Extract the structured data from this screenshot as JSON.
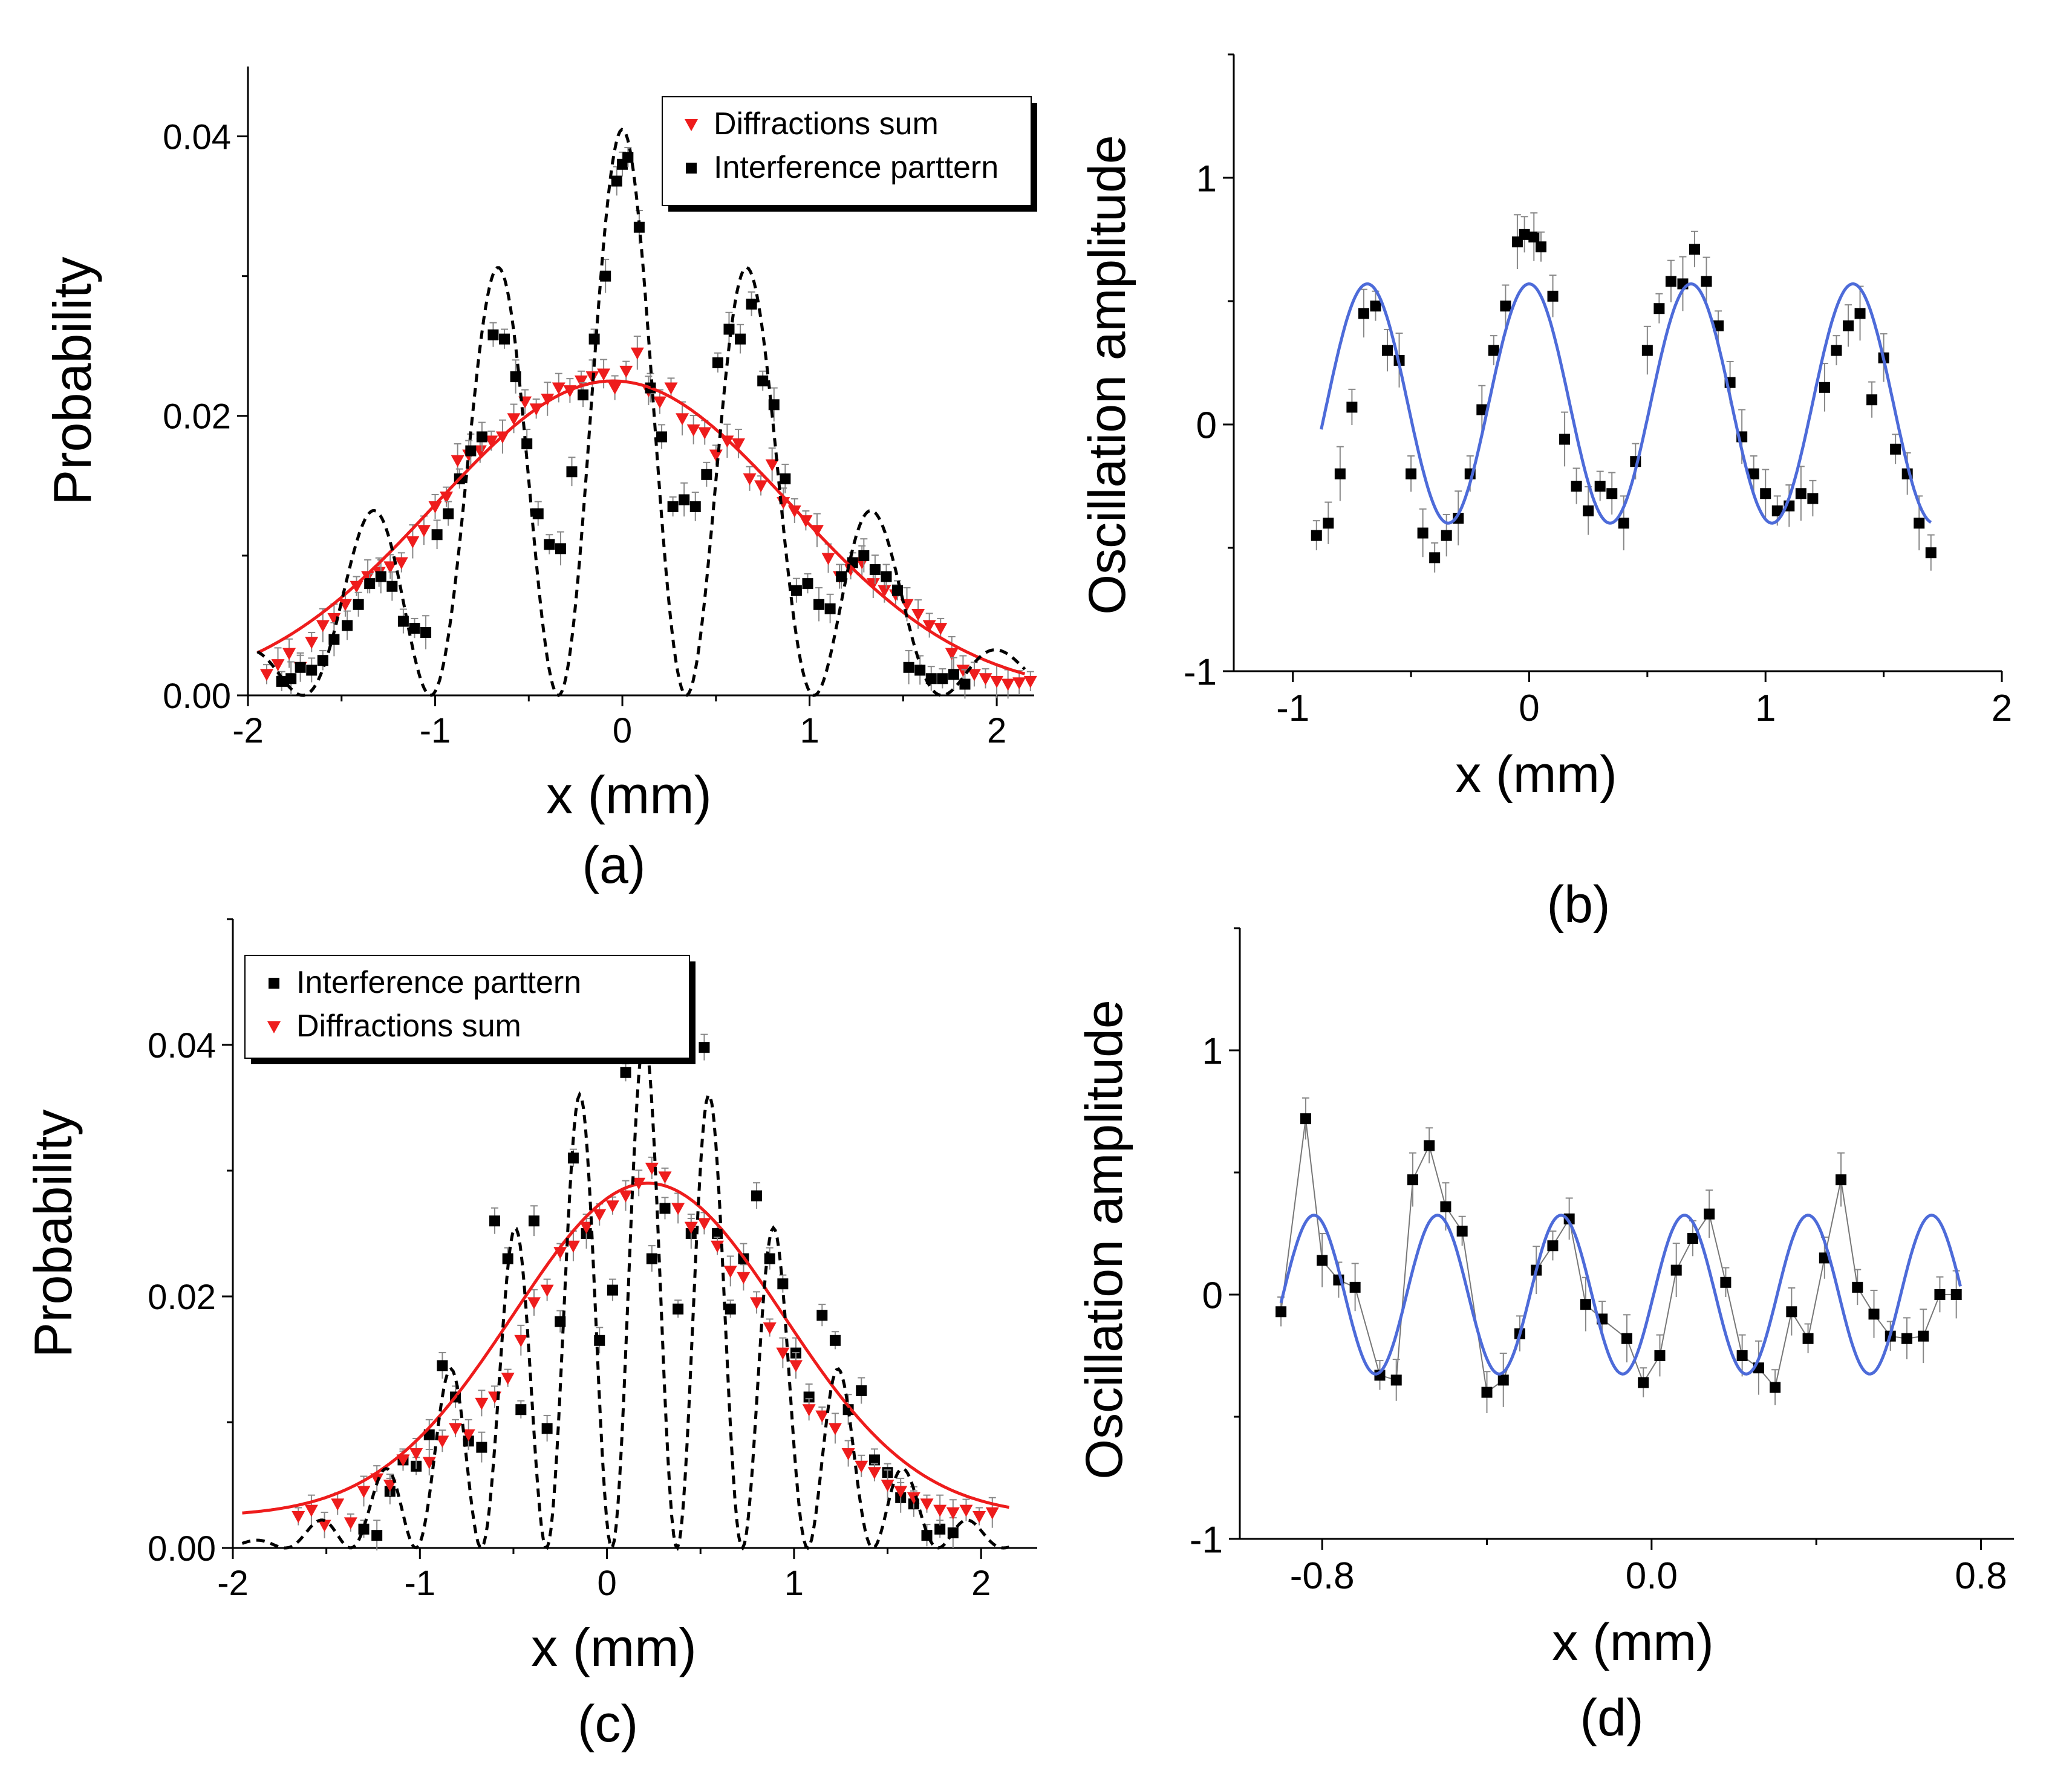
{
  "chart_data": [
    {
      "panel": "a",
      "type": "scatter",
      "caption": "(a)",
      "xlabel": "x (mm)",
      "ylabel": "Probability",
      "xlim": [
        -2,
        2.2
      ],
      "ylim": [
        0,
        0.045
      ],
      "xticks": [
        -2,
        -1,
        0,
        1,
        2
      ],
      "xtick_labels": [
        "-2",
        "-1",
        "0",
        "1",
        "2"
      ],
      "yticks": [
        0,
        0.02,
        0.04
      ],
      "ytick_labels": [
        "0.00",
        "0.02",
        "0.04"
      ],
      "legend": {
        "position": "top-right",
        "entries": [
          "Diffractions sum",
          "Interference parttern"
        ]
      },
      "series": [
        {
          "name": "Diffractions sum",
          "marker": "triangle-down",
          "color": "#ee1c1c",
          "x": [
            -1.9,
            -1.84,
            -1.78,
            -1.72,
            -1.66,
            -1.6,
            -1.54,
            -1.48,
            -1.42,
            -1.36,
            -1.3,
            -1.24,
            -1.18,
            -1.12,
            -1.06,
            -1.0,
            -0.94,
            -0.88,
            -0.82,
            -0.76,
            -0.7,
            -0.64,
            -0.58,
            -0.52,
            -0.46,
            -0.4,
            -0.34,
            -0.28,
            -0.22,
            -0.16,
            -0.1,
            -0.04,
            0.02,
            0.08,
            0.14,
            0.2,
            0.26,
            0.32,
            0.38,
            0.44,
            0.5,
            0.56,
            0.62,
            0.68,
            0.74,
            0.8,
            0.86,
            0.92,
            0.98,
            1.04,
            1.1,
            1.16,
            1.22,
            1.28,
            1.34,
            1.4,
            1.46,
            1.52,
            1.58,
            1.64,
            1.7,
            1.76,
            1.82,
            1.88,
            1.94,
            2.0,
            2.06,
            2.12,
            2.18
          ],
          "y": [
            0.0015,
            0.0022,
            0.003,
            0.002,
            0.0038,
            0.005,
            0.0055,
            0.0065,
            0.0078,
            0.0085,
            0.0088,
            0.0092,
            0.0095,
            0.011,
            0.0118,
            0.0135,
            0.0142,
            0.0168,
            0.0172,
            0.0175,
            0.0182,
            0.0185,
            0.0198,
            0.021,
            0.0205,
            0.0212,
            0.022,
            0.0218,
            0.0225,
            0.0228,
            0.023,
            0.022,
            0.0232,
            0.0245,
            0.0218,
            0.021,
            0.022,
            0.0198,
            0.019,
            0.0188,
            0.0172,
            0.0182,
            0.018,
            0.0155,
            0.015,
            0.0165,
            0.0138,
            0.0132,
            0.0125,
            0.0118,
            0.0098,
            0.0085,
            0.009,
            0.0095,
            0.008,
            0.0075,
            0.0072,
            0.0065,
            0.0058,
            0.005,
            0.0048,
            0.003,
            0.0018,
            0.0015,
            0.0012,
            0.001,
            0.0008,
            0.0009,
            0.001
          ]
        },
        {
          "name": "Interference parttern",
          "marker": "square",
          "color": "#000000",
          "x": [
            -1.82,
            -1.77,
            -1.72,
            -1.66,
            -1.6,
            -1.54,
            -1.47,
            -1.41,
            -1.35,
            -1.29,
            -1.23,
            -1.17,
            -1.11,
            -1.05,
            -0.99,
            -0.93,
            -0.87,
            -0.81,
            -0.75,
            -0.69,
            -0.63,
            -0.57,
            -0.51,
            -0.45,
            -0.39,
            -0.33,
            -0.27,
            -0.21,
            -0.15,
            -0.09,
            -0.03,
            0.0,
            0.03,
            0.09,
            0.15,
            0.21,
            0.27,
            0.33,
            0.39,
            0.45,
            0.51,
            0.57,
            0.63,
            0.69,
            0.75,
            0.81,
            0.87,
            0.93,
            0.99,
            1.05,
            1.11,
            1.17,
            1.23,
            1.29,
            1.35,
            1.41,
            1.47,
            1.53,
            1.59,
            1.65,
            1.71,
            1.77,
            1.83
          ],
          "y": [
            0.001,
            0.0012,
            0.002,
            0.0018,
            0.0025,
            0.004,
            0.005,
            0.0065,
            0.008,
            0.0085,
            0.0078,
            0.0053,
            0.0048,
            0.0045,
            0.0115,
            0.013,
            0.0155,
            0.0175,
            0.0185,
            0.0258,
            0.0255,
            0.0228,
            0.018,
            0.013,
            0.0108,
            0.0105,
            0.016,
            0.0215,
            0.0255,
            0.03,
            0.0368,
            0.038,
            0.0385,
            0.0335,
            0.022,
            0.0185,
            0.0135,
            0.014,
            0.0135,
            0.0158,
            0.0238,
            0.0262,
            0.0255,
            0.028,
            0.0225,
            0.0208,
            0.0155,
            0.0075,
            0.008,
            0.0065,
            0.0062,
            0.0085,
            0.0095,
            0.01,
            0.009,
            0.0085,
            0.0075,
            0.002,
            0.0018,
            0.0012,
            0.0012,
            0.0015,
            0.0008
          ]
        },
        {
          "name": "Diffractions sum fit",
          "style": "solid-line",
          "color": "#ee1c1c",
          "model": {
            "kind": "gaussian",
            "amp": 0.0225,
            "center": -0.05,
            "sigma": 0.95
          }
        },
        {
          "name": "Interference fit",
          "style": "dashed-line",
          "color": "#000000",
          "model": {
            "kind": "gauss-cos2",
            "amp": 0.0405,
            "center": 0.0,
            "sigma": 0.9,
            "k": 4.6
          }
        }
      ]
    },
    {
      "panel": "b",
      "type": "scatter",
      "caption": "(b)",
      "xlabel": "x (mm)",
      "ylabel": "Oscillation amplitude",
      "xlim": [
        -1.25,
        2
      ],
      "ylim": [
        -1,
        1.5
      ],
      "xticks": [
        -1,
        0,
        1,
        2
      ],
      "xtick_labels": [
        "-1",
        "0",
        "1",
        "2"
      ],
      "yticks": [
        -1,
        0,
        1
      ],
      "ytick_labels": [
        "-1",
        "0",
        "1"
      ],
      "series": [
        {
          "name": "Data",
          "marker": "square",
          "color": "#000000",
          "x": [
            -0.9,
            -0.85,
            -0.8,
            -0.75,
            -0.7,
            -0.65,
            -0.6,
            -0.55,
            -0.5,
            -0.45,
            -0.4,
            -0.35,
            -0.3,
            -0.25,
            -0.2,
            -0.15,
            -0.1,
            -0.05,
            -0.02,
            0.02,
            0.05,
            0.1,
            0.15,
            0.2,
            0.25,
            0.3,
            0.35,
            0.4,
            0.45,
            0.5,
            0.55,
            0.6,
            0.65,
            0.7,
            0.75,
            0.8,
            0.85,
            0.9,
            0.95,
            1.0,
            1.05,
            1.1,
            1.15,
            1.2,
            1.25,
            1.3,
            1.35,
            1.4,
            1.45,
            1.5,
            1.55,
            1.6,
            1.65,
            1.7
          ],
          "y": [
            -0.45,
            -0.4,
            -0.2,
            0.07,
            0.45,
            0.48,
            0.3,
            0.26,
            -0.2,
            -0.44,
            -0.54,
            -0.45,
            -0.38,
            -0.2,
            0.06,
            0.3,
            0.48,
            0.74,
            0.77,
            0.76,
            0.72,
            0.52,
            -0.06,
            -0.25,
            -0.35,
            -0.25,
            -0.28,
            -0.4,
            -0.15,
            0.3,
            0.47,
            0.58,
            0.57,
            0.71,
            0.58,
            0.4,
            0.17,
            -0.05,
            -0.2,
            -0.28,
            -0.35,
            -0.33,
            -0.28,
            -0.3,
            0.15,
            0.3,
            0.4,
            0.45,
            0.1,
            0.27,
            -0.1,
            -0.2,
            -0.4,
            -0.52
          ]
        },
        {
          "name": "Fit",
          "style": "solid-line",
          "color": "#4d6bd9",
          "model": {
            "kind": "cos-offset",
            "offset": 0.085,
            "amp": 0.485,
            "period": 0.685,
            "phase_x": 0.0,
            "x_range": [
              -0.88,
              1.7
            ]
          }
        }
      ]
    },
    {
      "panel": "c",
      "type": "scatter",
      "caption": "(c)",
      "xlabel": "x (mm)",
      "ylabel": "Probability",
      "xlim": [
        -2,
        2.3
      ],
      "ylim": [
        0,
        0.05
      ],
      "xticks": [
        -2,
        -1,
        0,
        1,
        2
      ],
      "xtick_labels": [
        "-2",
        "-1",
        "0",
        "1",
        "2"
      ],
      "yticks": [
        0,
        0.02,
        0.04
      ],
      "ytick_labels": [
        "0.00",
        "0.02",
        "0.04"
      ],
      "legend": {
        "position": "top-left",
        "entries": [
          "Interference parttern",
          "Diffractions sum"
        ]
      },
      "series": [
        {
          "name": "Interference parttern",
          "marker": "square",
          "color": "#000000",
          "x": [
            -1.3,
            -1.23,
            -1.16,
            -1.09,
            -1.02,
            -0.95,
            -0.88,
            -0.81,
            -0.74,
            -0.67,
            -0.6,
            -0.53,
            -0.46,
            -0.39,
            -0.32,
            -0.25,
            -0.18,
            -0.11,
            -0.04,
            0.03,
            0.1,
            0.17,
            0.24,
            0.31,
            0.38,
            0.45,
            0.52,
            0.59,
            0.66,
            0.73,
            0.8,
            0.87,
            0.94,
            1.01,
            1.08,
            1.15,
            1.22,
            1.29,
            1.36,
            1.43,
            1.5,
            1.57,
            1.64,
            1.71,
            1.78,
            1.85
          ],
          "y": [
            0.0015,
            0.001,
            0.0045,
            0.007,
            0.0065,
            0.009,
            0.0145,
            0.012,
            0.0085,
            0.008,
            0.026,
            0.023,
            0.011,
            0.026,
            0.0095,
            0.018,
            0.031,
            0.025,
            0.0165,
            0.0205,
            0.0378,
            0.0395,
            0.023,
            0.027,
            0.019,
            0.025,
            0.0398,
            0.025,
            0.019,
            0.023,
            0.028,
            0.023,
            0.021,
            0.0155,
            0.012,
            0.0185,
            0.0165,
            0.011,
            0.0125,
            0.007,
            0.006,
            0.004,
            0.0035,
            0.001,
            0.0015,
            0.0012
          ]
        },
        {
          "name": "Diffractions sum",
          "marker": "triangle-down",
          "color": "#ee1c1c",
          "x": [
            -1.65,
            -1.58,
            -1.51,
            -1.44,
            -1.37,
            -1.3,
            -1.23,
            -1.16,
            -1.09,
            -1.02,
            -0.95,
            -0.88,
            -0.81,
            -0.74,
            -0.67,
            -0.6,
            -0.53,
            -0.46,
            -0.39,
            -0.32,
            -0.25,
            -0.18,
            -0.11,
            -0.04,
            0.03,
            0.1,
            0.17,
            0.24,
            0.31,
            0.38,
            0.45,
            0.52,
            0.59,
            0.66,
            0.73,
            0.8,
            0.87,
            0.94,
            1.01,
            1.08,
            1.15,
            1.22,
            1.29,
            1.36,
            1.43,
            1.5,
            1.57,
            1.64,
            1.71,
            1.78,
            1.85,
            1.92,
            1.99,
            2.06
          ],
          "y": [
            0.0025,
            0.003,
            0.0018,
            0.0035,
            0.002,
            0.0045,
            0.0055,
            0.005,
            0.007,
            0.0075,
            0.0068,
            0.0085,
            0.0095,
            0.009,
            0.0115,
            0.012,
            0.0135,
            0.0165,
            0.0195,
            0.0205,
            0.0235,
            0.024,
            0.0255,
            0.0265,
            0.0272,
            0.028,
            0.029,
            0.0302,
            0.0295,
            0.027,
            0.0255,
            0.0258,
            0.024,
            0.022,
            0.0215,
            0.0195,
            0.0175,
            0.0155,
            0.0145,
            0.011,
            0.0105,
            0.0095,
            0.0075,
            0.0065,
            0.006,
            0.005,
            0.0045,
            0.004,
            0.0035,
            0.003,
            0.0028,
            0.003,
            0.0025,
            0.0028
          ]
        },
        {
          "name": "Diffractions sum fit",
          "style": "solid-line",
          "color": "#ee1c1c",
          "model": {
            "kind": "gaussian-offset",
            "amp": 0.0265,
            "offset": 0.0025,
            "center": 0.22,
            "sigma": 0.72
          }
        },
        {
          "name": "Interference fit",
          "style": "dashed-line",
          "color": "#000000",
          "model": {
            "kind": "gauss-cos2",
            "amp": 0.0405,
            "center": 0.2,
            "sigma": 0.72,
            "k": 9.0
          }
        }
      ]
    },
    {
      "panel": "d",
      "type": "scatter",
      "caption": "(d)",
      "xlabel": "x (mm)",
      "ylabel": "Oscillation amplitude",
      "xlim": [
        -1.0,
        0.88
      ],
      "ylim": [
        -1,
        1.5
      ],
      "xticks": [
        -0.8,
        0.0,
        0.8
      ],
      "xtick_labels": [
        "-0.8",
        "0.0",
        "0.8"
      ],
      "yticks": [
        -1,
        0,
        1
      ],
      "ytick_labels": [
        "-1",
        "0",
        "1"
      ],
      "series": [
        {
          "name": "Data",
          "marker": "square",
          "color": "#000000",
          "x": [
            -0.9,
            -0.84,
            -0.8,
            -0.76,
            -0.72,
            -0.66,
            -0.62,
            -0.58,
            -0.54,
            -0.5,
            -0.46,
            -0.4,
            -0.36,
            -0.32,
            -0.28,
            -0.24,
            -0.2,
            -0.16,
            -0.12,
            -0.06,
            -0.02,
            0.02,
            0.06,
            0.1,
            0.14,
            0.18,
            0.22,
            0.26,
            0.3,
            0.34,
            0.38,
            0.42,
            0.46,
            0.5,
            0.54,
            0.58,
            0.62,
            0.66,
            0.7,
            0.74
          ],
          "y": [
            -0.07,
            0.72,
            0.14,
            0.06,
            0.03,
            -0.33,
            -0.35,
            0.47,
            0.61,
            0.36,
            0.26,
            -0.4,
            -0.35,
            -0.16,
            0.1,
            0.2,
            0.31,
            -0.04,
            -0.1,
            -0.18,
            -0.36,
            -0.25,
            0.1,
            0.23,
            0.33,
            0.05,
            -0.25,
            -0.3,
            -0.38,
            -0.07,
            -0.18,
            0.15,
            0.47,
            0.03,
            -0.08,
            -0.17,
            -0.18,
            -0.17,
            0.0,
            0.0
          ]
        },
        {
          "name": "Fit",
          "style": "solid-line",
          "color": "#4d6bd9",
          "model": {
            "kind": "cos-offset",
            "offset": 0.0,
            "amp": 0.325,
            "period": 0.3,
            "phase_x": -0.82,
            "x_range": [
              -0.9,
              0.75
            ]
          }
        }
      ]
    }
  ]
}
